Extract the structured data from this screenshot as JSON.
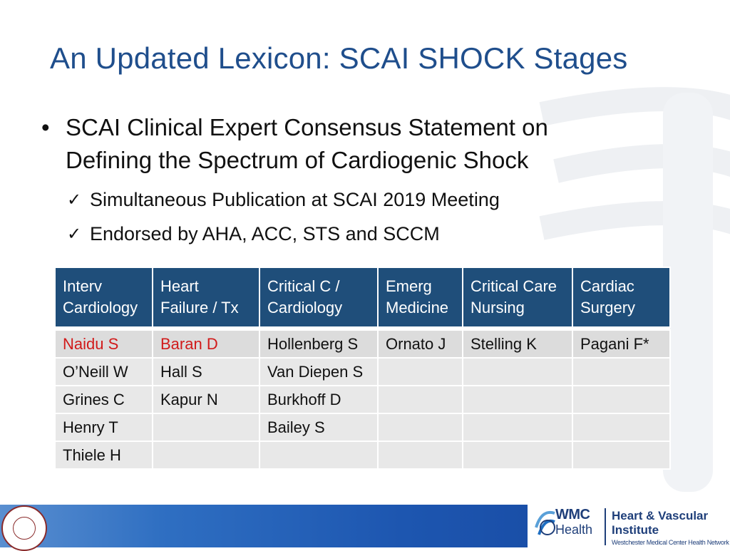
{
  "title": "An Updated Lexicon: SCAI SHOCK Stages",
  "bullet": {
    "marker": "•",
    "text_line1": "SCAI Clinical Expert Consensus Statement on",
    "text_line2": "Defining the Spectrum of Cardiogenic Shock"
  },
  "subpoints": [
    {
      "marker": "✓",
      "text": "Simultaneous Publication at SCAI 2019 Meeting"
    },
    {
      "marker": "✓",
      "text": "Endorsed by AHA, ACC, STS and SCCM"
    }
  ],
  "table": {
    "headers": [
      {
        "line1": "Interv",
        "line2": "Cardiology"
      },
      {
        "line1": "Heart",
        "line2": "Failure / Tx"
      },
      {
        "line1": "Critical C /",
        "line2": "Cardiology"
      },
      {
        "line1": "Emerg",
        "line2": "Medicine"
      },
      {
        "line1": "Critical Care",
        "line2": "Nursing"
      },
      {
        "line1": "Cardiac",
        "line2": "Surgery"
      }
    ],
    "rows": [
      [
        "Naidu S",
        "Baran D",
        "Hollenberg S",
        "Ornato J",
        "Stelling K",
        "Pagani F*"
      ],
      [
        "O’Neill W",
        "Hall S",
        "Van Diepen S",
        "",
        "",
        ""
      ],
      [
        "Grines C",
        "Kapur N",
        "Burkhoff D",
        "",
        "",
        ""
      ],
      [
        "Henry T",
        "",
        "Bailey S",
        "",
        "",
        ""
      ],
      [
        "Thiele H",
        "",
        "",
        "",
        "",
        ""
      ]
    ],
    "highlight_color": "#d11a1a",
    "header_color": "#1f4e7a"
  },
  "footer": {
    "brand_line1": "WMC",
    "brand_line2": "Health",
    "institute_line1": "Heart & Vascular",
    "institute_line2": "Institute",
    "network": "Westchester Medical Center Health Network"
  },
  "colors": {
    "title": "#1f4e8c",
    "footer_bar": "#1d56b0"
  }
}
